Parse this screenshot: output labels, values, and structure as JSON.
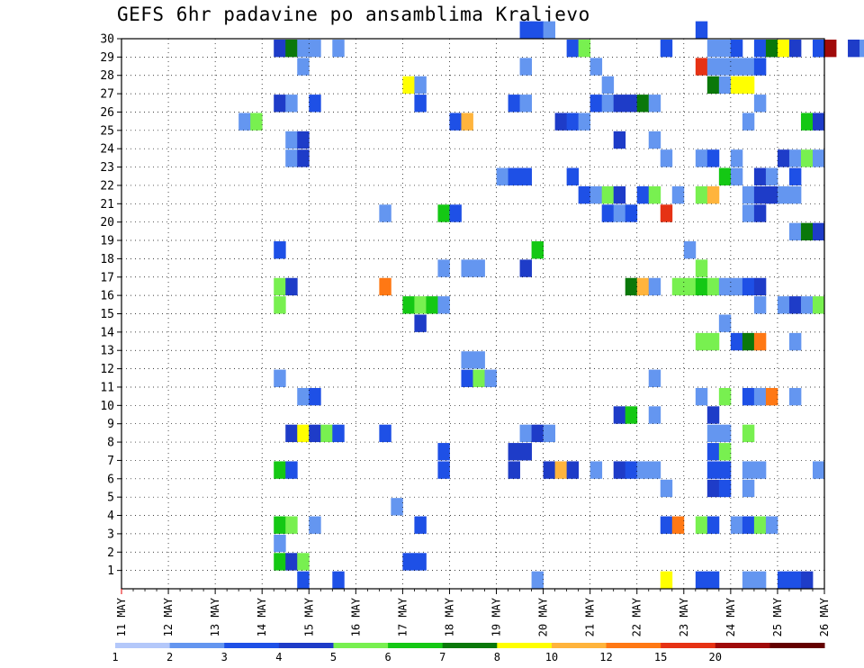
{
  "chart_data": {
    "type": "heatmap",
    "title": "GEFS 6hr padavine po ansamblima Kraljevo",
    "x_tick_labels": [
      "11 MAY",
      "12 MAY",
      "13 MAY",
      "14 MAY",
      "15 MAY",
      "16 MAY",
      "17 MAY",
      "18 MAY",
      "19 MAY",
      "20 MAY",
      "21 MAY",
      "22 MAY",
      "23 MAY",
      "24 MAY",
      "25 MAY",
      "26 MAY"
    ],
    "y_tick_labels": [
      "1",
      "2",
      "3",
      "4",
      "5",
      "6",
      "7",
      "8",
      "9",
      "10",
      "11",
      "12",
      "13",
      "14",
      "15",
      "16",
      "17",
      "18",
      "19",
      "20",
      "21",
      "22",
      "23",
      "24",
      "25",
      "26",
      "27",
      "28",
      "29",
      "30"
    ],
    "ylim": [
      0,
      30
    ],
    "x_steps": 60,
    "steps_per_day": 4,
    "grid": true,
    "legend": {
      "labels": [
        "1",
        "2",
        "3",
        "4",
        "5",
        "6",
        "7",
        "8",
        "10",
        "12",
        "15",
        "20"
      ],
      "colors": [
        "#b4c8fa",
        "#6496f0",
        "#1e50e6",
        "#1e3cc8",
        "#78f050",
        "#14c814",
        "#0a780a",
        "#ffff00",
        "#ffb43c",
        "#ff7814",
        "#e63214",
        "#a00a0a",
        "#640000"
      ]
    },
    "cells": [
      [
        34,
        30,
        2
      ],
      [
        35,
        30,
        2
      ],
      [
        36,
        30,
        1
      ],
      [
        49,
        30,
        2
      ],
      [
        55,
        29,
        1
      ],
      [
        59,
        29,
        3
      ],
      [
        60,
        29,
        11
      ],
      [
        62,
        29,
        3
      ],
      [
        63,
        29,
        1
      ],
      [
        13,
        29,
        3
      ],
      [
        14,
        29,
        6
      ],
      [
        15,
        29,
        1
      ],
      [
        16,
        29,
        1
      ],
      [
        18,
        29,
        1
      ],
      [
        38,
        29,
        2
      ],
      [
        39,
        29,
        4
      ],
      [
        46,
        29,
        2
      ],
      [
        50,
        29,
        1
      ],
      [
        51,
        29,
        1
      ],
      [
        52,
        29,
        2
      ],
      [
        54,
        29,
        2
      ],
      [
        55,
        29,
        6
      ],
      [
        56,
        29,
        7
      ],
      [
        57,
        29,
        3
      ],
      [
        59,
        29,
        2
      ],
      [
        15,
        28,
        1
      ],
      [
        34,
        28,
        1
      ],
      [
        40,
        28,
        1
      ],
      [
        49,
        28,
        10
      ],
      [
        50,
        28,
        1
      ],
      [
        51,
        28,
        1
      ],
      [
        52,
        28,
        1
      ],
      [
        53,
        28,
        1
      ],
      [
        54,
        28,
        2
      ],
      [
        24,
        27,
        7
      ],
      [
        25,
        27,
        1
      ],
      [
        41,
        27,
        1
      ],
      [
        50,
        27,
        6
      ],
      [
        51,
        27,
        1
      ],
      [
        52,
        27,
        7
      ],
      [
        53,
        27,
        7
      ],
      [
        13,
        26,
        3
      ],
      [
        14,
        26,
        1
      ],
      [
        16,
        26,
        2
      ],
      [
        25,
        26,
        2
      ],
      [
        33,
        26,
        2
      ],
      [
        34,
        26,
        1
      ],
      [
        40,
        26,
        2
      ],
      [
        41,
        26,
        1
      ],
      [
        42,
        26,
        3
      ],
      [
        43,
        26,
        3
      ],
      [
        44,
        26,
        6
      ],
      [
        45,
        26,
        1
      ],
      [
        54,
        26,
        1
      ],
      [
        10,
        25,
        1
      ],
      [
        11,
        25,
        4
      ],
      [
        28,
        25,
        2
      ],
      [
        29,
        25,
        8
      ],
      [
        37,
        25,
        3
      ],
      [
        38,
        25,
        2
      ],
      [
        39,
        25,
        1
      ],
      [
        53,
        25,
        1
      ],
      [
        58,
        25,
        5
      ],
      [
        59,
        25,
        3
      ],
      [
        14,
        24,
        1
      ],
      [
        15,
        24,
        3
      ],
      [
        42,
        24,
        3
      ],
      [
        45,
        24,
        1
      ],
      [
        14,
        23,
        1
      ],
      [
        15,
        23,
        3
      ],
      [
        46,
        23,
        1
      ],
      [
        49,
        23,
        1
      ],
      [
        50,
        23,
        2
      ],
      [
        52,
        23,
        1
      ],
      [
        56,
        23,
        3
      ],
      [
        57,
        23,
        1
      ],
      [
        58,
        23,
        4
      ],
      [
        59,
        23,
        1
      ],
      [
        32,
        22,
        1
      ],
      [
        33,
        22,
        2
      ],
      [
        34,
        22,
        2
      ],
      [
        38,
        22,
        2
      ],
      [
        51,
        22,
        5
      ],
      [
        52,
        22,
        1
      ],
      [
        54,
        22,
        3
      ],
      [
        55,
        22,
        1
      ],
      [
        57,
        22,
        2
      ],
      [
        39,
        21,
        2
      ],
      [
        40,
        21,
        1
      ],
      [
        41,
        21,
        4
      ],
      [
        42,
        21,
        3
      ],
      [
        44,
        21,
        2
      ],
      [
        45,
        21,
        4
      ],
      [
        47,
        21,
        1
      ],
      [
        49,
        21,
        4
      ],
      [
        50,
        21,
        8
      ],
      [
        53,
        21,
        1
      ],
      [
        54,
        21,
        3
      ],
      [
        55,
        21,
        3
      ],
      [
        56,
        21,
        1
      ],
      [
        57,
        21,
        1
      ],
      [
        22,
        20,
        1
      ],
      [
        27,
        20,
        5
      ],
      [
        28,
        20,
        2
      ],
      [
        41,
        20,
        2
      ],
      [
        42,
        20,
        1
      ],
      [
        43,
        20,
        2
      ],
      [
        46,
        20,
        10
      ],
      [
        53,
        20,
        1
      ],
      [
        54,
        20,
        3
      ],
      [
        57,
        19,
        1
      ],
      [
        58,
        19,
        6
      ],
      [
        59,
        19,
        3
      ],
      [
        13,
        18,
        2
      ],
      [
        35,
        18,
        5
      ],
      [
        48,
        18,
        1
      ],
      [
        27,
        17,
        1
      ],
      [
        29,
        17,
        1
      ],
      [
        30,
        17,
        1
      ],
      [
        34,
        17,
        3
      ],
      [
        49,
        17,
        4
      ],
      [
        13,
        16,
        4
      ],
      [
        14,
        16,
        3
      ],
      [
        22,
        16,
        9
      ],
      [
        43,
        16,
        6
      ],
      [
        44,
        16,
        8
      ],
      [
        45,
        16,
        1
      ],
      [
        47,
        16,
        4
      ],
      [
        48,
        16,
        4
      ],
      [
        49,
        16,
        5
      ],
      [
        50,
        16,
        4
      ],
      [
        51,
        16,
        1
      ],
      [
        52,
        16,
        1
      ],
      [
        53,
        16,
        2
      ],
      [
        54,
        16,
        3
      ],
      [
        13,
        15,
        4
      ],
      [
        24,
        15,
        5
      ],
      [
        25,
        15,
        4
      ],
      [
        26,
        15,
        5
      ],
      [
        27,
        15,
        1
      ],
      [
        54,
        15,
        1
      ],
      [
        56,
        15,
        1
      ],
      [
        57,
        15,
        3
      ],
      [
        58,
        15,
        1
      ],
      [
        59,
        15,
        4
      ],
      [
        25,
        14,
        3
      ],
      [
        51,
        14,
        1
      ],
      [
        49,
        13,
        4
      ],
      [
        50,
        13,
        4
      ],
      [
        52,
        13,
        2
      ],
      [
        53,
        13,
        6
      ],
      [
        54,
        13,
        9
      ],
      [
        57,
        13,
        1
      ],
      [
        29,
        12,
        1
      ],
      [
        30,
        12,
        1
      ],
      [
        29,
        11,
        2
      ],
      [
        30,
        11,
        4
      ],
      [
        31,
        11,
        1
      ],
      [
        13,
        11,
        1
      ],
      [
        45,
        11,
        1
      ],
      [
        15,
        10,
        1
      ],
      [
        16,
        10,
        2
      ],
      [
        49,
        10,
        1
      ],
      [
        51,
        10,
        4
      ],
      [
        53,
        10,
        2
      ],
      [
        54,
        10,
        1
      ],
      [
        55,
        10,
        9
      ],
      [
        57,
        10,
        1
      ],
      [
        42,
        9,
        3
      ],
      [
        43,
        9,
        5
      ],
      [
        45,
        9,
        1
      ],
      [
        50,
        9,
        3
      ],
      [
        14,
        8,
        3
      ],
      [
        15,
        8,
        7
      ],
      [
        16,
        8,
        3
      ],
      [
        17,
        8,
        4
      ],
      [
        18,
        8,
        2
      ],
      [
        22,
        8,
        2
      ],
      [
        34,
        8,
        1
      ],
      [
        35,
        8,
        3
      ],
      [
        36,
        8,
        1
      ],
      [
        50,
        8,
        1
      ],
      [
        51,
        8,
        1
      ],
      [
        53,
        8,
        4
      ],
      [
        27,
        7,
        2
      ],
      [
        33,
        7,
        3
      ],
      [
        34,
        7,
        3
      ],
      [
        50,
        7,
        2
      ],
      [
        51,
        7,
        4
      ],
      [
        13,
        6,
        5
      ],
      [
        14,
        6,
        2
      ],
      [
        27,
        6,
        2
      ],
      [
        33,
        6,
        3
      ],
      [
        36,
        6,
        3
      ],
      [
        37,
        6,
        8
      ],
      [
        38,
        6,
        3
      ],
      [
        40,
        6,
        1
      ],
      [
        42,
        6,
        3
      ],
      [
        43,
        6,
        2
      ],
      [
        44,
        6,
        1
      ],
      [
        45,
        6,
        1
      ],
      [
        50,
        6,
        2
      ],
      [
        51,
        6,
        2
      ],
      [
        53,
        6,
        1
      ],
      [
        54,
        6,
        1
      ],
      [
        59,
        6,
        1
      ],
      [
        46,
        5,
        1
      ],
      [
        50,
        5,
        3
      ],
      [
        51,
        5,
        2
      ],
      [
        53,
        5,
        1
      ],
      [
        23,
        4,
        1
      ],
      [
        13,
        3,
        5
      ],
      [
        14,
        3,
        4
      ],
      [
        16,
        3,
        1
      ],
      [
        25,
        3,
        2
      ],
      [
        46,
        3,
        2
      ],
      [
        47,
        3,
        9
      ],
      [
        49,
        3,
        4
      ],
      [
        50,
        3,
        2
      ],
      [
        52,
        3,
        1
      ],
      [
        53,
        3,
        2
      ],
      [
        54,
        3,
        4
      ],
      [
        55,
        3,
        1
      ],
      [
        13,
        2,
        1
      ],
      [
        13,
        1,
        5
      ],
      [
        14,
        1,
        3
      ],
      [
        15,
        1,
        4
      ],
      [
        24,
        1,
        2
      ],
      [
        25,
        1,
        2
      ],
      [
        15,
        0,
        2
      ],
      [
        18,
        0,
        2
      ],
      [
        35,
        0,
        1
      ],
      [
        46,
        0,
        7
      ],
      [
        49,
        0,
        2
      ],
      [
        50,
        0,
        2
      ],
      [
        53,
        0,
        1
      ],
      [
        54,
        0,
        1
      ],
      [
        56,
        0,
        2
      ],
      [
        57,
        0,
        2
      ],
      [
        58,
        0,
        3
      ]
    ]
  }
}
